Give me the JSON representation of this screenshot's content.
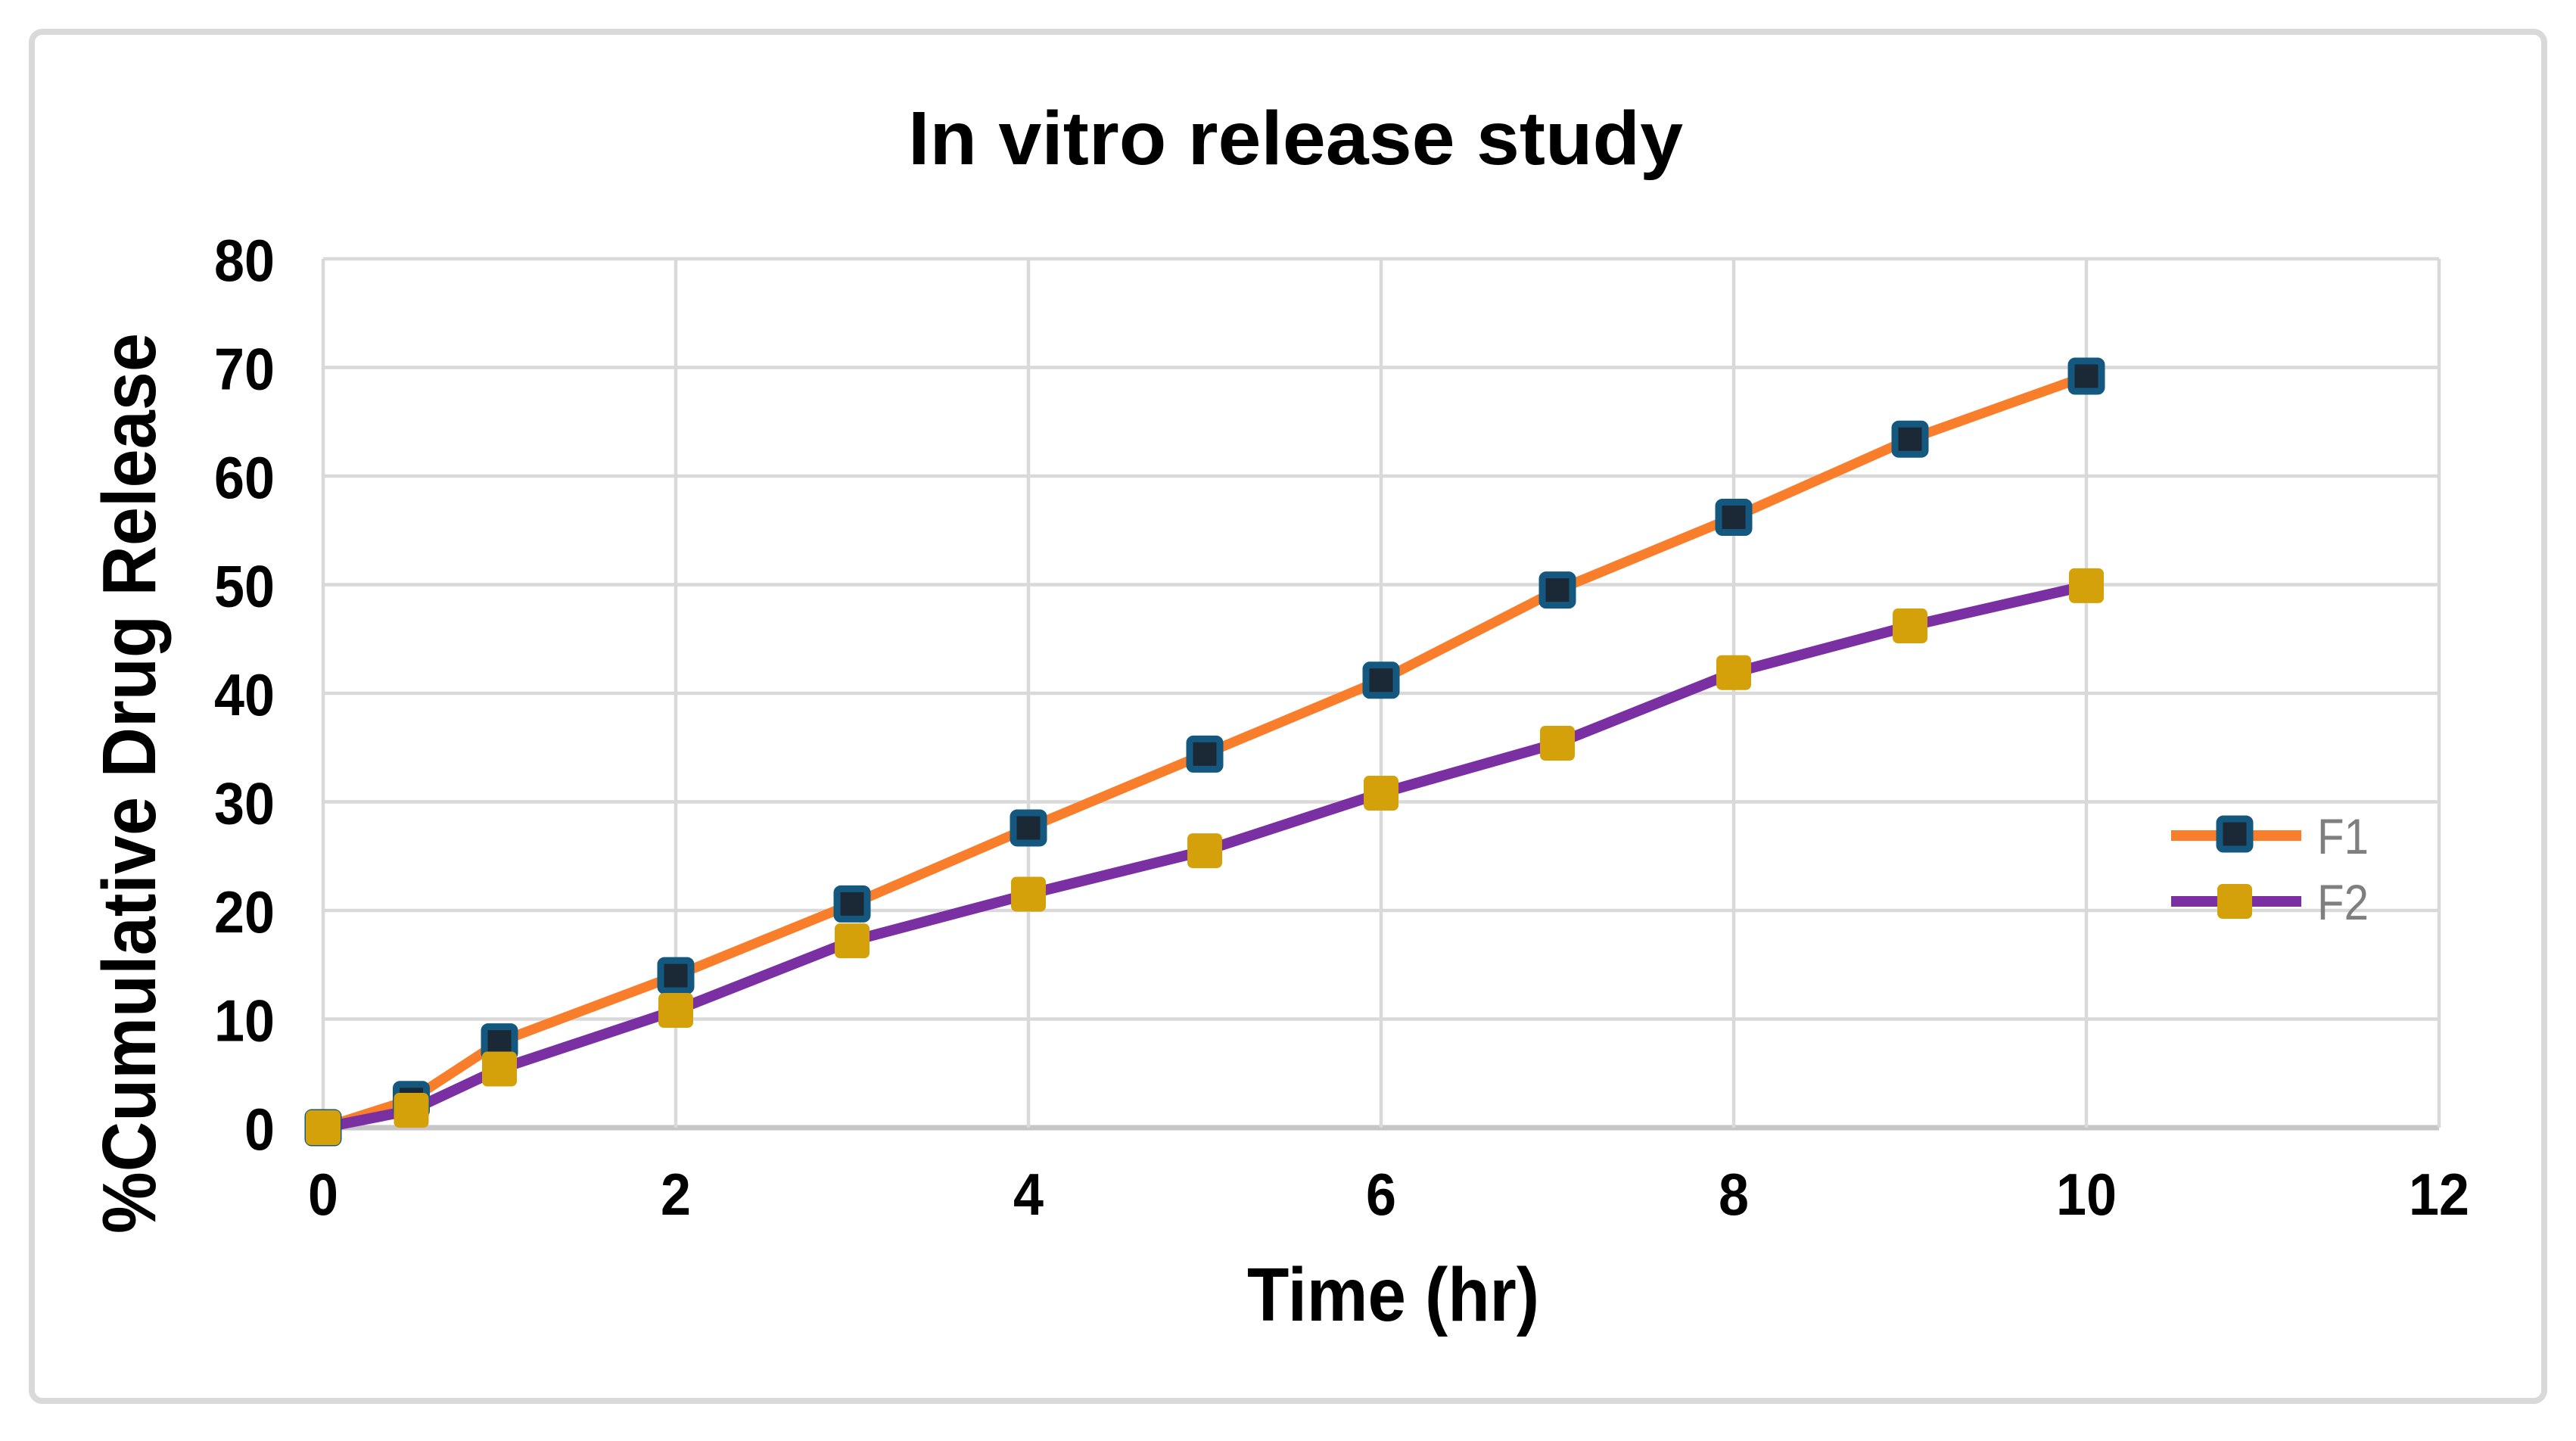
{
  "frame": {
    "background": "#FFFFFF",
    "border_color": "#D9D9D9"
  },
  "chart_data": {
    "type": "line",
    "title": "In vitro release study",
    "xlabel": "Time (hr)",
    "ylabel": "%Cumulative Drug Release",
    "x": [
      0,
      0.5,
      1,
      2,
      3,
      4,
      5,
      6,
      7,
      8,
      9,
      10
    ],
    "series": [
      {
        "name": "F1",
        "line_color": "#F87E2B",
        "marker": "square",
        "marker_fill": "#1B2836",
        "marker_border": "#15587F",
        "values": [
          0,
          2.6,
          7.9,
          14.0,
          20.6,
          27.6,
          34.4,
          41.2,
          49.5,
          56.2,
          63.4,
          69.2
        ]
      },
      {
        "name": "F2",
        "line_color": "#7A30A2",
        "marker": "square",
        "marker_fill": "#D5A10A",
        "marker_border": "#D5A10A",
        "values": [
          0,
          1.6,
          5.4,
          10.8,
          17.2,
          21.5,
          25.5,
          30.8,
          35.4,
          41.9,
          46.2,
          49.9
        ]
      }
    ],
    "xlim": [
      0,
      12
    ],
    "ylim": [
      0,
      80
    ],
    "x_ticks": [
      "0",
      "2",
      "4",
      "6",
      "8",
      "10",
      "12"
    ],
    "y_ticks": [
      "0",
      "10",
      "20",
      "30",
      "40",
      "50",
      "60",
      "70",
      "80"
    ],
    "grid": true,
    "grid_color": "#D9D9D9",
    "axis_line_color": "#C6C6C6",
    "tick_color": "#000000",
    "legend_position": "right-inside",
    "legend_text_color": "#7F7F7F"
  }
}
